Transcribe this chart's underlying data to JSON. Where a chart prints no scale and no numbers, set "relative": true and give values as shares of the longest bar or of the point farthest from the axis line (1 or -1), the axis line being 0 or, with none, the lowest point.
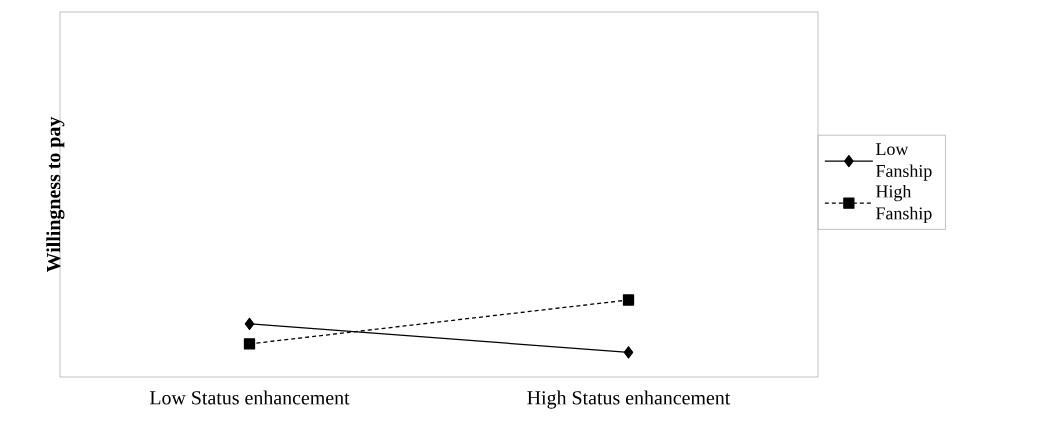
{
  "chart_data": {
    "type": "line",
    "relative": true,
    "ylabel": "Willingness to pay",
    "categories": [
      "Low Status enhancement",
      "High Status enhancement"
    ],
    "legend": "right",
    "series": [
      {
        "name": "Low Fanship",
        "color": "#000000",
        "marker": "diamond",
        "line_style": "solid",
        "values": [
          0.69,
          0.32
        ]
      },
      {
        "name": "High Fanship",
        "color": "#000000",
        "marker": "square",
        "line_style": "dashed",
        "values": [
          0.43,
          1
        ]
      }
    ]
  }
}
